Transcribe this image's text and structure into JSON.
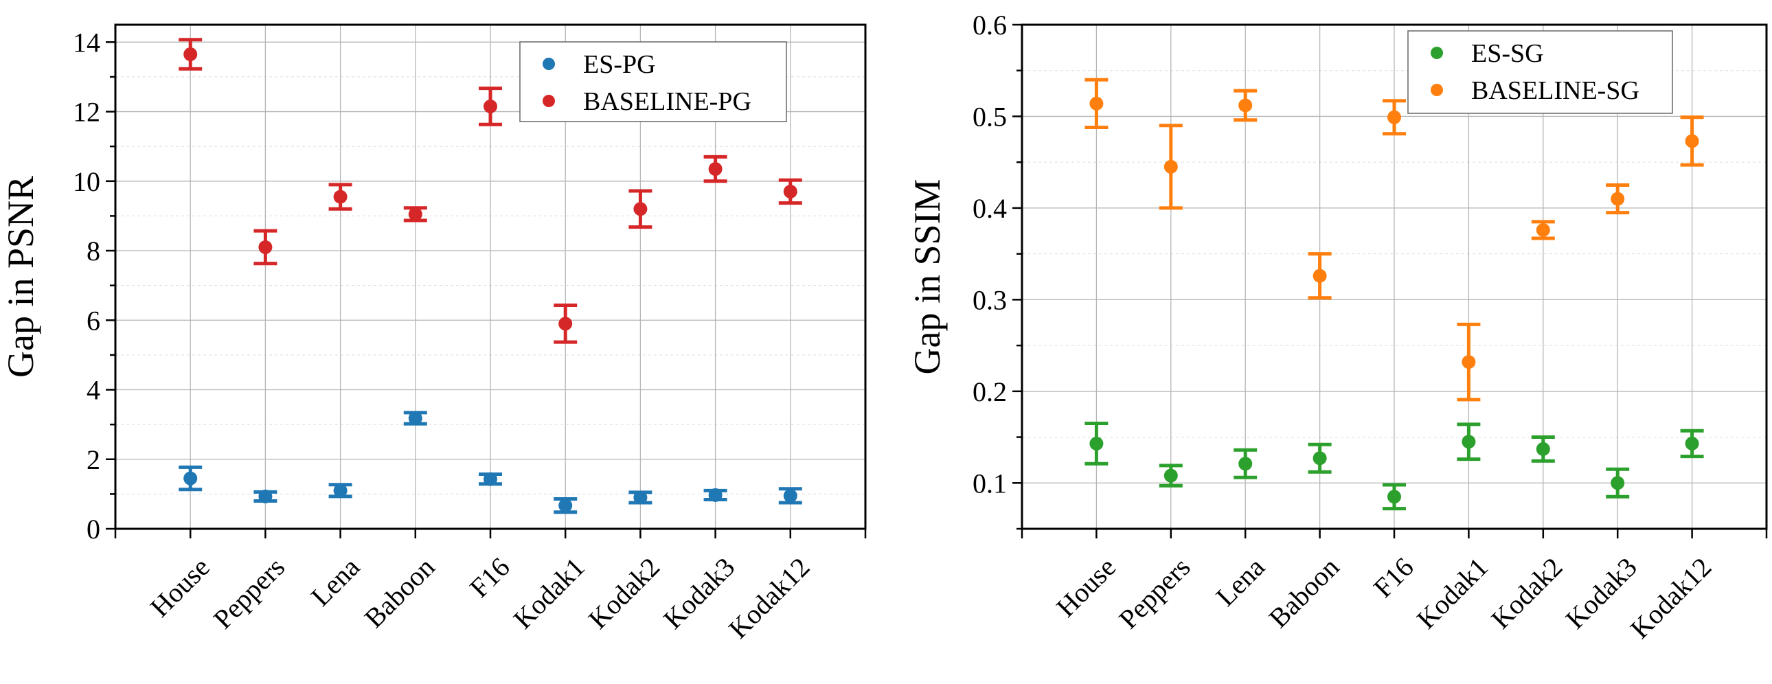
{
  "chart_data": [
    {
      "type": "scatter",
      "title": "",
      "xlabel": "",
      "ylabel": "Gap in PSNR",
      "categories": [
        "House",
        "Peppers",
        "Lena",
        "Baboon",
        "F16",
        "Kodak1",
        "Kodak2",
        "Kodak3",
        "Kodak12"
      ],
      "ylim": [
        0,
        14.5
      ],
      "yticks": [
        0,
        2,
        4,
        6,
        8,
        10,
        12,
        14
      ],
      "yticks_labels": [
        "0",
        "2",
        "4",
        "6",
        "8",
        "10",
        "12",
        "14"
      ],
      "minor_step": 1,
      "grid": true,
      "legend": "top-right",
      "series": [
        {
          "name": "ES-PG",
          "color": "#1f77b4",
          "values": [
            1.45,
            0.93,
            1.1,
            3.18,
            1.43,
            0.67,
            0.9,
            0.97,
            0.95
          ],
          "errors": [
            0.32,
            0.13,
            0.17,
            0.16,
            0.14,
            0.19,
            0.15,
            0.13,
            0.2
          ]
        },
        {
          "name": "BASELINE-PG",
          "color": "#d62728",
          "values": [
            13.65,
            8.1,
            9.55,
            9.05,
            12.15,
            5.9,
            9.2,
            10.35,
            9.7
          ],
          "errors": [
            0.42,
            0.47,
            0.35,
            0.18,
            0.52,
            0.53,
            0.52,
            0.35,
            0.33
          ]
        }
      ]
    },
    {
      "type": "scatter",
      "title": "",
      "xlabel": "",
      "ylabel": "Gap in SSIM",
      "categories": [
        "House",
        "Peppers",
        "Lena",
        "Baboon",
        "F16",
        "Kodak1",
        "Kodak2",
        "Kodak3",
        "Kodak12"
      ],
      "ylim": [
        0.05,
        0.6
      ],
      "yticks": [
        0.1,
        0.2,
        0.3,
        0.4,
        0.5,
        0.6
      ],
      "yticks_labels": [
        "0.1",
        "0.2",
        "0.3",
        "0.4",
        "0.5",
        "0.6"
      ],
      "minor_step": 0.05,
      "grid": true,
      "legend": "top-right",
      "series": [
        {
          "name": "ES-SG",
          "color": "#2ca02c",
          "values": [
            0.143,
            0.108,
            0.121,
            0.127,
            0.085,
            0.145,
            0.137,
            0.1,
            0.143
          ],
          "errors": [
            0.022,
            0.011,
            0.015,
            0.015,
            0.013,
            0.019,
            0.013,
            0.015,
            0.014
          ]
        },
        {
          "name": "BASELINE-SG",
          "color": "#ff7f0e",
          "values": [
            0.514,
            0.445,
            0.512,
            0.326,
            0.499,
            0.232,
            0.376,
            0.41,
            0.473
          ],
          "errors": [
            0.026,
            0.045,
            0.016,
            0.024,
            0.018,
            0.041,
            0.009,
            0.015,
            0.026
          ]
        }
      ]
    }
  ]
}
